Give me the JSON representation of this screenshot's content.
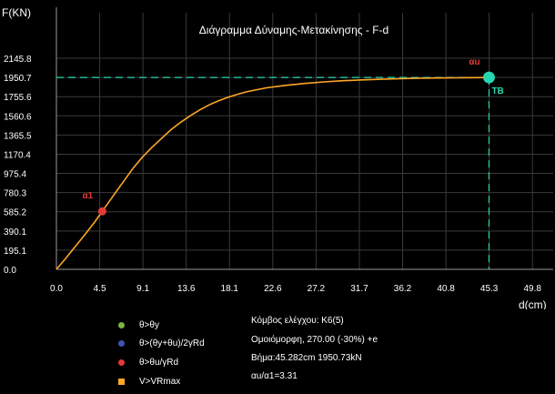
{
  "chart_data": {
    "type": "line",
    "title": "Διάγραμμα Δύναμης-Μετακίνησης - F-d",
    "xlabel": "d(cm)",
    "ylabel": "F(KN)",
    "xlim": [
      0,
      52
    ],
    "ylim": [
      0,
      2145.8
    ],
    "x_ticks": [
      "0.0",
      "4.5",
      "9.1",
      "13.6",
      "18.1",
      "22.6",
      "27.2",
      "31.7",
      "36.2",
      "40.8",
      "45.3",
      "49.8"
    ],
    "y_ticks": [
      "0.0",
      "195.1",
      "390.1",
      "585.2",
      "780.3",
      "975.4",
      "1170.4",
      "1365.5",
      "1560.6",
      "1755.6",
      "1950.7",
      "2145.8"
    ],
    "grid": true,
    "series": [
      {
        "color": "#ffa726",
        "x": [
          0,
          1,
          2,
          3,
          4,
          4.8,
          6,
          7,
          8,
          9,
          10,
          11,
          12,
          13,
          14,
          15,
          16,
          17,
          18,
          19,
          20,
          22,
          24,
          26,
          28,
          30,
          32,
          34,
          36,
          38,
          40,
          42,
          44,
          45.282
        ],
        "y": [
          0,
          115,
          235,
          355,
          480,
          590,
          755,
          890,
          1025,
          1140,
          1240,
          1330,
          1420,
          1495,
          1560,
          1620,
          1672,
          1715,
          1750,
          1780,
          1807,
          1845,
          1870,
          1890,
          1905,
          1917,
          1926,
          1932,
          1938,
          1942,
          1945,
          1947,
          1949,
          1950.73
        ]
      }
    ],
    "markers": [
      {
        "label": "α1",
        "x": 4.8,
        "y": 590,
        "color": "#e53935"
      },
      {
        "label": "αu",
        "x": 45.282,
        "y": 1950.73,
        "color": "#26d7b0"
      }
    ],
    "annotations": [
      "TB"
    ],
    "ref_lines": {
      "x": 45.282,
      "y": 1950.73,
      "color": "#26d7b0"
    }
  },
  "legend": [
    {
      "label": "θ>θy",
      "color": "#7cb342",
      "shape": "circle"
    },
    {
      "label": "θ>(θy+θu)/2γRd",
      "color": "#3f51b5",
      "shape": "circle"
    },
    {
      "label": "θ>θu/γRd",
      "color": "#e53935",
      "shape": "circle"
    },
    {
      "label": "V>VRmax",
      "color": "#ffa726",
      "shape": "square"
    }
  ],
  "info": {
    "node": "Κόμβος ελέγχου: K6(5)",
    "load": "Ομοιόμορφη, 270.00 (-30%) +e",
    "step": "Βήμα:45.282cm 1950.73kN",
    "ratio": "αu/α1=3.31"
  }
}
